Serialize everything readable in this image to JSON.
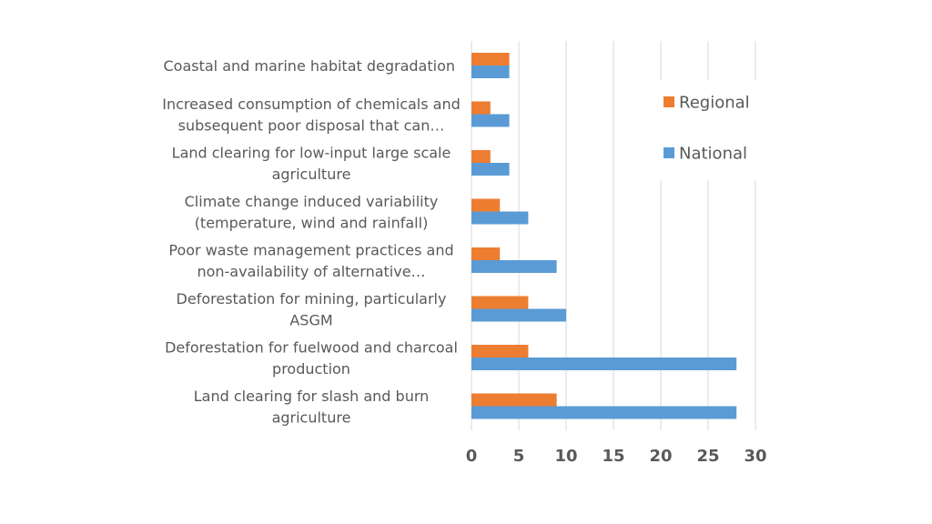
{
  "chart_data": {
    "type": "bar",
    "orientation": "horizontal",
    "title": "",
    "xlabel": "",
    "ylabel": "",
    "xlim": [
      0,
      30
    ],
    "ticks": [
      "0",
      "5",
      "10",
      "15",
      "20",
      "25",
      "30"
    ],
    "tick_values": [
      0,
      5,
      10,
      15,
      20,
      25,
      30
    ],
    "grid": true,
    "legend_position": "right",
    "colors": {
      "Regional": "#ED7D31",
      "National": "#5B9BD5"
    },
    "categories": [
      [
        "Coastal and marine habitat degradation"
      ],
      [
        "Increased consumption of chemicals and",
        "subsequent poor disposal that can…"
      ],
      [
        "Land clearing for low-input large scale",
        "agriculture"
      ],
      [
        "Climate change induced variability",
        "(temperature, wind and rainfall)"
      ],
      [
        "Poor waste management practices and",
        "non-availability of alternative…"
      ],
      [
        "Deforestation for mining, particularly",
        "ASGM"
      ],
      [
        "Deforestation for fuelwood and charcoal",
        "production"
      ],
      [
        "Land clearing for slash and burn",
        "agriculture"
      ]
    ],
    "series": [
      {
        "name": "Regional",
        "values": [
          4,
          2,
          2,
          3,
          3,
          6,
          6,
          9
        ]
      },
      {
        "name": "National",
        "values": [
          4,
          4,
          4,
          6,
          9,
          10,
          28,
          28
        ]
      }
    ]
  }
}
